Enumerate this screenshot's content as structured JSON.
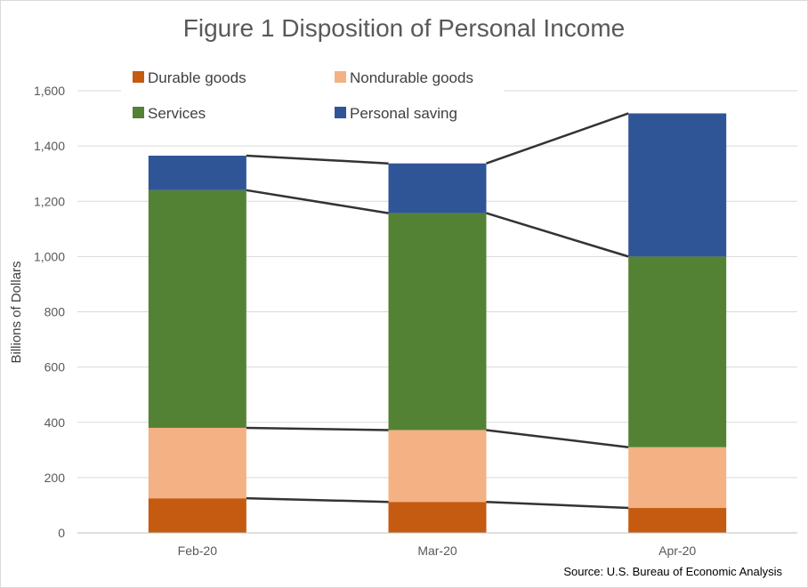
{
  "chart_data": {
    "type": "bar",
    "stacked": true,
    "title": "Figure 1 Disposition of Personal Income",
    "xlabel": "",
    "ylabel": "Billions of Dollars",
    "categories": [
      "Feb-20",
      "Mar-20",
      "Apr-20"
    ],
    "ylim": [
      0,
      1600
    ],
    "yticks": [
      0,
      200,
      400,
      600,
      800,
      1000,
      1200,
      1400,
      1600
    ],
    "ytick_labels": [
      "0",
      "200",
      "400",
      "600",
      "800",
      "1,000",
      "1,200",
      "1,400",
      "1,600"
    ],
    "grid": true,
    "legend_position": "top",
    "series_connector_lines": true,
    "series": [
      {
        "name": "Durable goods",
        "color": "#C55A11",
        "values": [
          125,
          112,
          90
        ]
      },
      {
        "name": "Nondurable goods",
        "color": "#F4B183",
        "values": [
          255,
          260,
          220
        ]
      },
      {
        "name": "Services",
        "color": "#548235",
        "values": [
          860,
          785,
          690
        ]
      },
      {
        "name": "Personal saving",
        "color": "#2F5597",
        "values": [
          125,
          180,
          518
        ]
      }
    ],
    "source": "Source: U.S. Bureau of Economic Analysis"
  }
}
